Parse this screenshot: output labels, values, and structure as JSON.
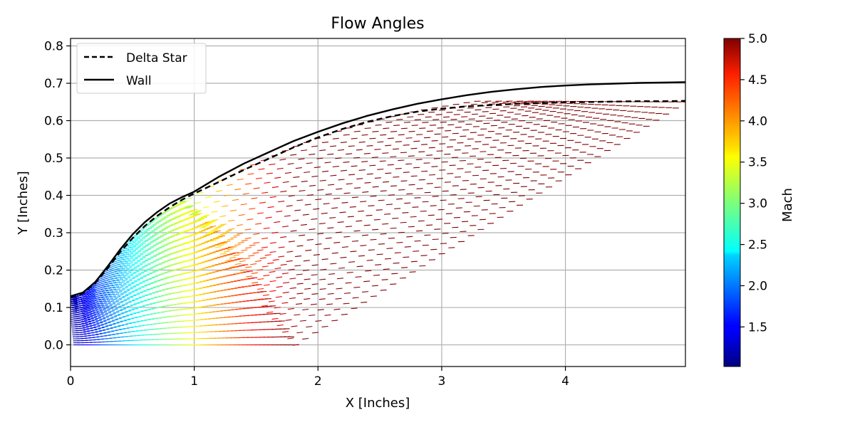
{
  "chart_data": {
    "type": "quiver",
    "title": "Flow Angles",
    "xlabel": "X [Inches]",
    "ylabel": "Y [Inches]",
    "xlim": [
      0,
      4.97
    ],
    "ylim": [
      -0.058,
      0.82
    ],
    "xticks": [
      0,
      1,
      2,
      3,
      4
    ],
    "yticks": [
      0.0,
      0.1,
      0.2,
      0.3,
      0.4,
      0.5,
      0.6,
      0.7,
      0.8
    ],
    "grid": true,
    "legend_position": "top-left",
    "series": [
      {
        "name": "Delta Star",
        "style": "dashed",
        "color": "#000000",
        "x": [
          0.0,
          0.1,
          0.2,
          0.3,
          0.4,
          0.5,
          0.6,
          0.7,
          0.8,
          0.9,
          1.0,
          1.2,
          1.4,
          1.6,
          1.8,
          2.0,
          2.2,
          2.4,
          2.6,
          2.8,
          3.0,
          3.2,
          3.4,
          3.6,
          3.8,
          4.0,
          4.2,
          4.4,
          4.6,
          4.8,
          4.97
        ],
        "y": [
          0.128,
          0.138,
          0.165,
          0.205,
          0.248,
          0.285,
          0.318,
          0.345,
          0.368,
          0.388,
          0.405,
          0.436,
          0.468,
          0.498,
          0.528,
          0.555,
          0.578,
          0.597,
          0.612,
          0.624,
          0.632,
          0.638,
          0.642,
          0.645,
          0.647,
          0.649,
          0.65,
          0.651,
          0.652,
          0.652,
          0.653
        ]
      },
      {
        "name": "Wall",
        "style": "solid",
        "color": "#000000",
        "x": [
          0.0,
          0.1,
          0.2,
          0.3,
          0.4,
          0.5,
          0.6,
          0.7,
          0.8,
          0.9,
          1.0,
          1.2,
          1.4,
          1.6,
          1.8,
          2.0,
          2.2,
          2.4,
          2.6,
          2.8,
          3.0,
          3.2,
          3.4,
          3.6,
          3.8,
          4.0,
          4.2,
          4.4,
          4.6,
          4.8,
          4.97
        ],
        "y": [
          0.13,
          0.14,
          0.168,
          0.21,
          0.255,
          0.295,
          0.328,
          0.355,
          0.378,
          0.395,
          0.41,
          0.45,
          0.485,
          0.515,
          0.545,
          0.57,
          0.593,
          0.613,
          0.63,
          0.645,
          0.657,
          0.668,
          0.677,
          0.684,
          0.69,
          0.694,
          0.697,
          0.699,
          0.701,
          0.702,
          0.703
        ]
      }
    ],
    "vector_field": {
      "quantity": "Mach",
      "colormap": "jet",
      "region_lower_edge_x": [
        0.05,
        1.82
      ],
      "region_outer_edge_x": [
        1.82,
        4.97
      ],
      "region_outer_edge_y": [
        0.0,
        0.65
      ]
    },
    "colorbar": {
      "label": "Mach",
      "vmin": 1.02,
      "vmax": 5.0,
      "ticks": [
        1.5,
        2.0,
        2.5,
        3.0,
        3.5,
        4.0,
        4.5,
        5.0
      ],
      "tick_labels": [
        "1.5",
        "2.0",
        "2.5",
        "3.0",
        "3.5",
        "4.0",
        "4.5",
        "5.0"
      ]
    }
  }
}
